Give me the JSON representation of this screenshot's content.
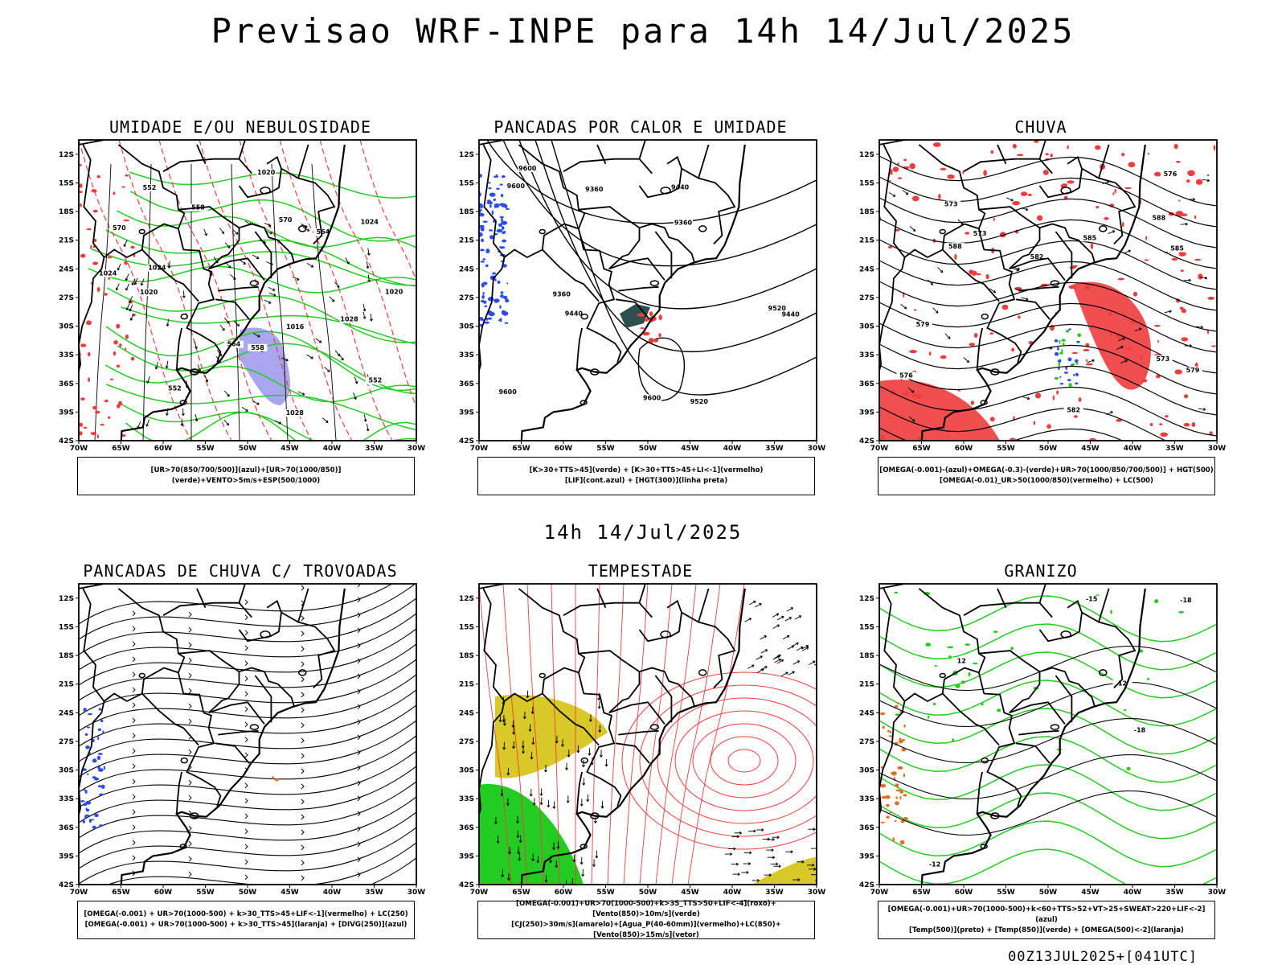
{
  "main_title": "Previsao WRF-INPE  para 14h 14/Jul/2025",
  "mid_title": "14h 14/Jul/2025",
  "footer_stamp": "00Z13JUL2025+[041UTC]",
  "lat_ticks": [
    "12S",
    "15S",
    "18S",
    "21S",
    "24S",
    "27S",
    "30S",
    "33S",
    "36S",
    "39S",
    "42S"
  ],
  "lon_ticks": [
    "70W",
    "65W",
    "60W",
    "55W",
    "50W",
    "45W",
    "40W",
    "35W",
    "30W"
  ],
  "colors": {
    "red": "#f03c3c",
    "green": "#22cc22",
    "blue": "#2a4cf0",
    "purple": "#a9a6f0",
    "yellow": "#d8c828",
    "orange": "#e07020",
    "black": "#000000"
  },
  "panels": [
    {
      "title": "UMIDADE E/OU NEBULOSIDADE",
      "legend": [
        "[UR>70(850/700/500)](azul)+[UR>70(1000/850)](verde)+VENTO>5m/s+ESP(500/1000)"
      ],
      "labels": [
        "1020",
        "1020",
        "1024",
        "1024",
        "1020",
        "1016",
        "1024",
        "1028",
        "1028",
        "570",
        "564",
        "558",
        "552",
        "552",
        "570",
        "564",
        "558",
        "552"
      ]
    },
    {
      "title": "PANCADAS POR CALOR E UMIDADE",
      "legend": [
        "[K>30+TTS>45](verde) + [K>30+TTS>45+LI<-1](vermelho)",
        "[LIF](cont.azul) + [HGT(300)](linha preta)"
      ],
      "labels": [
        "9600",
        "9600",
        "9600",
        "9600",
        "9520",
        "9520",
        "9440",
        "9440",
        "9360",
        "9360",
        "9360",
        "9440"
      ]
    },
    {
      "title": "CHUVA",
      "legend": [
        "[OMEGA(-0.001)-(azul)+OMEGA(-0.3)-(verde)+UR>70(1000/850/700/500)] + HGT(500)",
        "[OMEGA(-0.01)_UR>50(1000/850)(vermelho) + LC(500)"
      ],
      "labels": [
        "588",
        "588",
        "585",
        "582",
        "579",
        "576",
        "573",
        "579",
        "582",
        "585",
        "573",
        "576",
        "573"
      ]
    },
    {
      "title": "PANCADAS DE CHUVA C/ TROVOADAS",
      "legend": [
        "[OMEGA(-0.001) + UR>70(1000-500) + k>30_TTS>45+LIF<-1](vermelho) + LC(250)",
        "[OMEGA(-0.001) + UR>70(1000-500) + k>30_TTS>45](laranja) + [DIVG(250)](azul)"
      ],
      "labels": []
    },
    {
      "title": "TEMPESTADE",
      "legend": [
        "[OMEGA(-0.001)+UR>70(1000-500)+k>35_TTS>50+LIF<-4](roxo)+[Vento(850)>10m/s](verde)",
        "[CJ(250)>30m/s](amarelo)+[Agua_P(40-60mm)](vermelho)+LC(850)+[Vento(850)>15m/s](vetor)"
      ],
      "labels": []
    },
    {
      "title": "GRANIZO",
      "legend": [
        "[OMEGA(-0.001)+UR>70(1000-500)+k<60+TTS>52+VT>25+SWEAT>220+LIF<-2](azul)",
        "[Temp(500)](preto) + [Temp(850)](verde) + [OMEGA(500)<-2](laranja)"
      ],
      "labels": [
        "12",
        "-18",
        "-12",
        "-18",
        "-15",
        "12"
      ]
    }
  ],
  "chart_data": [
    {
      "type": "heatmap",
      "title": "UMIDADE E/OU NEBULOSIDADE",
      "x_range": [
        "70W",
        "30W"
      ],
      "y_range": [
        "12S",
        "42S"
      ],
      "fields": [
        "UR>70 850/700/500 (azul)",
        "UR>70 1000/850 (verde)",
        "VENTO>5m/s",
        "ESP 500/1000"
      ],
      "contour_values": [
        1016,
        1020,
        1024,
        1028,
        552,
        558,
        564,
        570
      ]
    },
    {
      "type": "heatmap",
      "title": "PANCADAS POR CALOR E UMIDADE",
      "x_range": [
        "70W",
        "30W"
      ],
      "y_range": [
        "12S",
        "42S"
      ],
      "contour_values": [
        9360,
        9440,
        9520,
        9600
      ]
    },
    {
      "type": "heatmap",
      "title": "CHUVA",
      "x_range": [
        "70W",
        "30W"
      ],
      "y_range": [
        "12S",
        "42S"
      ],
      "contour_values": [
        573,
        576,
        579,
        582,
        585,
        588
      ]
    },
    {
      "type": "heatmap",
      "title": "PANCADAS DE CHUVA C/ TROVOADAS",
      "x_range": [
        "70W",
        "30W"
      ],
      "y_range": [
        "12S",
        "42S"
      ]
    },
    {
      "type": "heatmap",
      "title": "TEMPESTADE",
      "x_range": [
        "70W",
        "30W"
      ],
      "y_range": [
        "12S",
        "42S"
      ]
    },
    {
      "type": "heatmap",
      "title": "GRANIZO",
      "x_range": [
        "70W",
        "30W"
      ],
      "y_range": [
        "12S",
        "42S"
      ],
      "contour_values": [
        -18,
        -15,
        -12,
        12
      ]
    }
  ]
}
